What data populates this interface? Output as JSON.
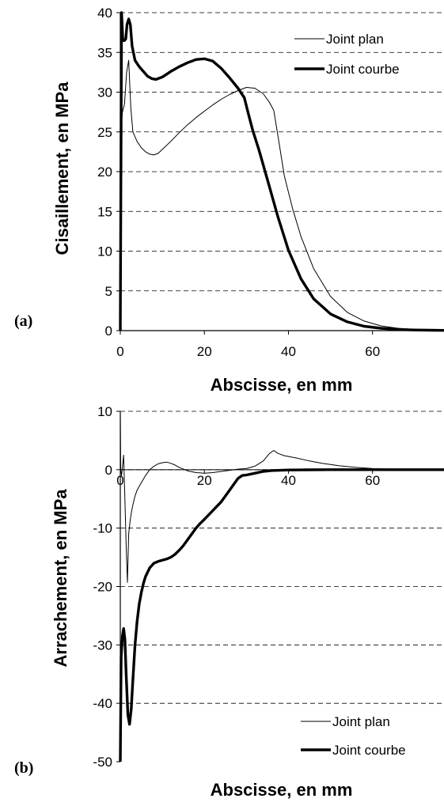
{
  "chart_data": [
    {
      "type": "line",
      "panel_label": "(a)",
      "xlabel": "Abscisse, en mm",
      "ylabel": "Cisaillement, en MPa",
      "xlim": [
        0,
        77
      ],
      "ylim": [
        0,
        40
      ],
      "x_ticks": [
        "0",
        "20",
        "40",
        "60"
      ],
      "y_ticks": [
        "0",
        "5",
        "10",
        "15",
        "20",
        "25",
        "30",
        "35",
        "40"
      ],
      "grid": "horizontal dashed",
      "legend_position": "top-right",
      "series": [
        {
          "name": "Joint plan",
          "style": "thin",
          "x": [
            0,
            0.2,
            0.5,
            1.0,
            1.5,
            2.0,
            2.5,
            3.0,
            4.0,
            5.0,
            6.0,
            7.0,
            8.0,
            9.0,
            10.0,
            12.0,
            14.0,
            16.0,
            18.0,
            20.0,
            22.0,
            24.0,
            26.0,
            28.0,
            30.0,
            32.0,
            34.0,
            35.5,
            36.5,
            37.5,
            39.0,
            41.0,
            43.0,
            46.0,
            50.0,
            54.0,
            58.0,
            62.0,
            66.0,
            70.0,
            74.0,
            77.0
          ],
          "y": [
            0,
            25.5,
            27.5,
            28.5,
            32.5,
            34.0,
            28.0,
            25.0,
            23.8,
            23.0,
            22.5,
            22.2,
            22.1,
            22.3,
            22.8,
            23.8,
            24.9,
            25.9,
            26.8,
            27.6,
            28.4,
            29.1,
            29.7,
            30.2,
            30.6,
            30.5,
            29.8,
            28.7,
            27.7,
            24.5,
            19.5,
            15.3,
            11.8,
            7.8,
            4.3,
            2.3,
            1.2,
            0.6,
            0.3,
            0.15,
            0.08,
            0.05
          ]
        },
        {
          "name": "Joint courbe",
          "style": "thick",
          "x": [
            0,
            0.3,
            0.6,
            1.0,
            1.3,
            1.6,
            2.0,
            2.4,
            2.8,
            3.5,
            4.5,
            5.5,
            6.5,
            7.5,
            8.5,
            10.0,
            12.0,
            14.0,
            16.0,
            18.0,
            20.0,
            22.0,
            24.0,
            26.0,
            28.0,
            29.5,
            30.5,
            31.5,
            33.0,
            35.0,
            37.5,
            40.0,
            43.0,
            46.0,
            50.0,
            54.0,
            58.0,
            62.0,
            66.0,
            70.0,
            74.0,
            77.0
          ],
          "y": [
            0,
            40.0,
            36.5,
            36.5,
            36.7,
            38.5,
            39.2,
            38.5,
            35.8,
            34.0,
            33.2,
            32.6,
            32.0,
            31.7,
            31.6,
            31.9,
            32.6,
            33.2,
            33.7,
            34.1,
            34.2,
            33.9,
            33.0,
            31.8,
            30.5,
            29.3,
            27.2,
            25.2,
            22.7,
            19.0,
            14.3,
            10.1,
            6.5,
            4.0,
            2.1,
            1.1,
            0.55,
            0.3,
            0.15,
            0.08,
            0.05,
            0.03
          ]
        }
      ]
    },
    {
      "type": "line",
      "panel_label": "(b)",
      "xlabel": "Abscisse, en mm",
      "ylabel": "Arrachement, en MPa",
      "xlim": [
        0,
        77
      ],
      "ylim": [
        -50,
        10
      ],
      "x_ticks": [
        "0",
        "20",
        "40",
        "60"
      ],
      "y_ticks": [
        "-50",
        "-40",
        "-30",
        "-20",
        "-10",
        "0",
        "10"
      ],
      "grid": "horizontal dashed",
      "legend_position": "bottom-right",
      "series": [
        {
          "name": "Joint plan",
          "style": "thin",
          "x": [
            0,
            0.1,
            0.3,
            0.5,
            0.8,
            1.1,
            1.4,
            1.7,
            2.0,
            2.3,
            2.6,
            3.0,
            3.5,
            4.0,
            5.0,
            6.0,
            7.0,
            8.0,
            9.0,
            10.0,
            11.0,
            12.0,
            13.0,
            14.0,
            15.0,
            16.0,
            18.0,
            20.0,
            22.0,
            24.0,
            26.0,
            28.0,
            30.0,
            32.0,
            34.0,
            35.5,
            36.5,
            37.5,
            39.0,
            42.0,
            45.0,
            48.0,
            52.0,
            56.0,
            60.0,
            64.0,
            70.0,
            77.0
          ],
          "y": [
            10,
            0,
            -1,
            0.5,
            2.5,
            -5.0,
            -13.0,
            -19.3,
            -11.0,
            -9.0,
            -7.5,
            -6.0,
            -4.5,
            -3.5,
            -2.2,
            -1.0,
            0,
            0.6,
            1.0,
            1.2,
            1.3,
            1.1,
            0.8,
            0.4,
            0.1,
            -0.2,
            -0.5,
            -0.6,
            -0.5,
            -0.3,
            -0.1,
            0.1,
            0.2,
            0.6,
            1.5,
            2.8,
            3.3,
            2.8,
            2.4,
            2.0,
            1.5,
            1.1,
            0.7,
            0.4,
            0.2,
            0.1,
            0.05,
            0.02
          ]
        },
        {
          "name": "Joint courbe",
          "style": "thick",
          "x": [
            0,
            0.2,
            0.5,
            0.8,
            1.1,
            1.4,
            1.8,
            2.2,
            2.6,
            3.0,
            3.5,
            4.0,
            4.5,
            5.0,
            5.5,
            6.0,
            7.0,
            8.0,
            9.0,
            10.0,
            11.0,
            12.0,
            13.0,
            14.0,
            15.0,
            16.0,
            17.0,
            18.0,
            19.0,
            20.0,
            22.0,
            24.0,
            26.0,
            27.0,
            28.0,
            29.0,
            30.0,
            32.0,
            34.0,
            36.0,
            38.0,
            40.0,
            44.0,
            50.0,
            60.0,
            70.0,
            77.0
          ],
          "y": [
            -50,
            -32,
            -28.5,
            -27.2,
            -29.0,
            -35.0,
            -42.0,
            -43.6,
            -41.0,
            -36.0,
            -30.0,
            -26.0,
            -23.0,
            -21.0,
            -19.5,
            -18.3,
            -16.8,
            -16.0,
            -15.7,
            -15.5,
            -15.3,
            -15.0,
            -14.5,
            -13.8,
            -13.0,
            -12.0,
            -11.0,
            -10.0,
            -9.2,
            -8.5,
            -7.0,
            -5.5,
            -3.5,
            -2.5,
            -1.5,
            -1.0,
            -0.9,
            -0.6,
            -0.3,
            -0.15,
            -0.1,
            -0.05,
            -0.02,
            0,
            0,
            0,
            0
          ]
        }
      ]
    }
  ]
}
